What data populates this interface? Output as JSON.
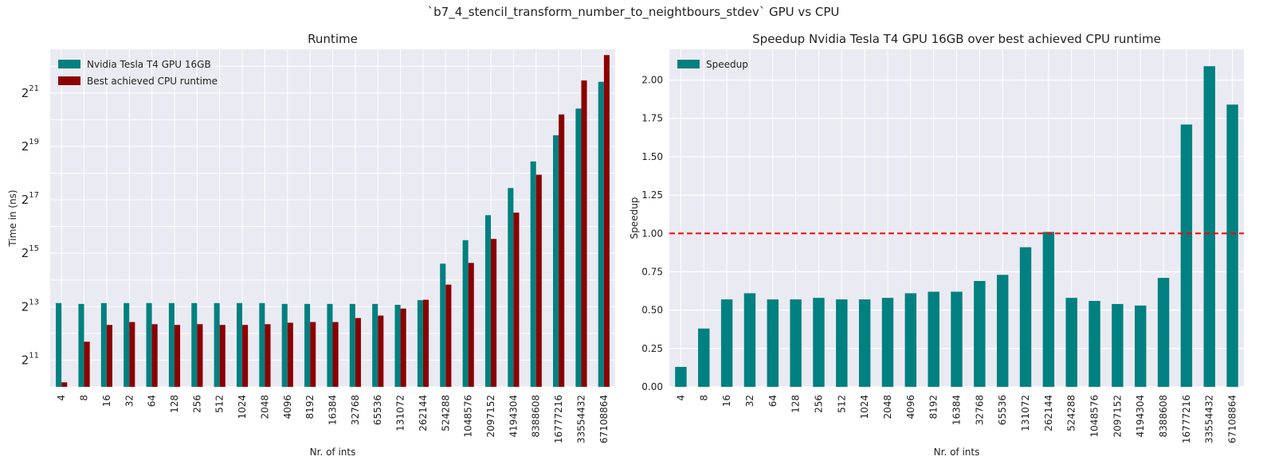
{
  "suptitle": "`b7_4_stencil_transform_number_to_neightbours_stdev` GPU vs CPU",
  "colors": {
    "gpu": "#008080",
    "cpu": "#8b0000",
    "speedup": "#008080",
    "ref_line": "#ff0000",
    "axes_bg": "#eaeaf2",
    "grid": "#ffffff"
  },
  "chart_data": [
    {
      "type": "bar",
      "title": "Runtime",
      "xlabel": "Nr. of ints",
      "ylabel": "Time in (ns)",
      "yscale": "log2",
      "ylim": [
        1024,
        6500000
      ],
      "yticks": [
        {
          "value": 2048,
          "base": "2",
          "exp": "11"
        },
        {
          "value": 8192,
          "base": "2",
          "exp": "13"
        },
        {
          "value": 32768,
          "base": "2",
          "exp": "15"
        },
        {
          "value": 131072,
          "base": "2",
          "exp": "17"
        },
        {
          "value": 524288,
          "base": "2",
          "exp": "19"
        },
        {
          "value": 2097152,
          "base": "2",
          "exp": "21"
        }
      ],
      "grid": true,
      "legend_position": "top-left",
      "categories": [
        "4",
        "8",
        "16",
        "32",
        "64",
        "128",
        "256",
        "512",
        "1024",
        "2048",
        "4096",
        "8192",
        "16384",
        "32768",
        "65536",
        "131072",
        "262144",
        "524288",
        "1048576",
        "2097152",
        "4194304",
        "8388608",
        "16777216",
        "33554432",
        "67108864"
      ],
      "series": [
        {
          "name": "Nvidia Tesla T4 GPU 16GB",
          "color": "#008080",
          "values": [
            9000,
            8800,
            9000,
            9000,
            9000,
            9000,
            9000,
            9000,
            9000,
            9000,
            8800,
            8800,
            8800,
            8800,
            8800,
            8600,
            9700,
            25000,
            46000,
            88000,
            178000,
            355000,
            700000,
            1400000,
            2800000
          ]
        },
        {
          "name": "Best achieved CPU runtime",
          "color": "#8b0000",
          "values": [
            1150,
            3300,
            5100,
            5500,
            5200,
            5100,
            5200,
            5100,
            5100,
            5200,
            5400,
            5500,
            5500,
            6100,
            6500,
            7800,
            9800,
            14500,
            25500,
            47500,
            94000,
            251000,
            1200000,
            2900000,
            5600000
          ]
        }
      ]
    },
    {
      "type": "bar",
      "title": "Speedup Nvidia Tesla T4 GPU 16GB over best achieved CPU runtime",
      "xlabel": "Nr. of ints",
      "ylabel": "Speedup",
      "ylim": [
        0,
        2.2
      ],
      "yticks": [
        "0.00",
        "0.25",
        "0.50",
        "0.75",
        "1.00",
        "1.25",
        "1.50",
        "1.75",
        "2.00"
      ],
      "grid": true,
      "legend_position": "top-left",
      "reference_line": {
        "y": 1.0,
        "style": "dashed",
        "color": "#ff0000"
      },
      "categories": [
        "4",
        "8",
        "16",
        "32",
        "64",
        "128",
        "256",
        "512",
        "1024",
        "2048",
        "4096",
        "8192",
        "16384",
        "32768",
        "65536",
        "131072",
        "262144",
        "524288",
        "1048576",
        "2097152",
        "4194304",
        "8388608",
        "16777216",
        "33554432",
        "67108864"
      ],
      "series": [
        {
          "name": "Speedup",
          "color": "#008080",
          "values": [
            0.13,
            0.38,
            0.57,
            0.61,
            0.57,
            0.57,
            0.58,
            0.57,
            0.57,
            0.58,
            0.61,
            0.62,
            0.62,
            0.69,
            0.73,
            0.91,
            1.01,
            0.58,
            0.56,
            0.54,
            0.53,
            0.71,
            1.71,
            2.09,
            1.84
          ]
        }
      ]
    }
  ]
}
